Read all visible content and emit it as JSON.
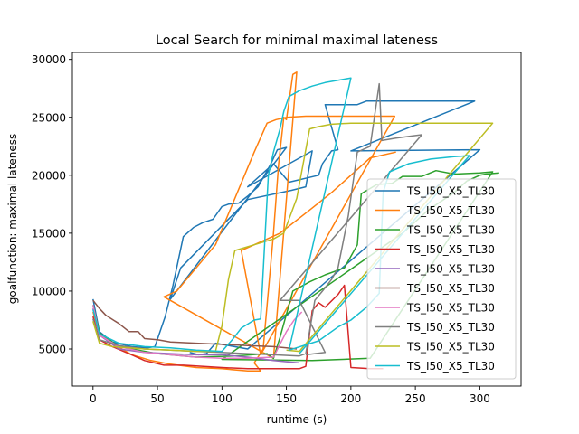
{
  "chart_data": {
    "type": "line",
    "title": "Local Search for minimal maximal lateness",
    "xlabel": "runtime (s)",
    "ylabel": "goalfunction: maximal lateness",
    "xlim": [
      -16,
      332
    ],
    "ylim": [
      1800,
      30600
    ],
    "xticks": [
      0,
      50,
      100,
      150,
      200,
      250,
      300
    ],
    "yticks": [
      5000,
      10000,
      15000,
      20000,
      25000,
      30000
    ],
    "grid": false,
    "legend_position": "center-right",
    "series": [
      {
        "name": "TS_I50_X5_TL30",
        "color": "#1f77b4",
        "points": [
          [
            0,
            9300
          ],
          [
            5,
            6500
          ],
          [
            15,
            5600
          ],
          [
            30,
            5200
          ],
          [
            42,
            5100
          ],
          [
            48,
            5200
          ],
          [
            56,
            7800
          ],
          [
            62,
            10500
          ],
          [
            70,
            14700
          ],
          [
            78,
            15500
          ],
          [
            85,
            15900
          ],
          [
            93,
            16200
          ],
          [
            100,
            17300
          ],
          [
            105,
            17500
          ],
          [
            113,
            17600
          ],
          [
            120,
            18200
          ],
          [
            128,
            19000
          ],
          [
            133,
            20000
          ],
          [
            138,
            21000
          ],
          [
            143,
            22200
          ],
          [
            150,
            22400
          ],
          [
            60,
            9300
          ],
          [
            68,
            12000
          ],
          [
            120,
            17900
          ],
          [
            154,
            18700
          ],
          [
            165,
            19000
          ],
          [
            170,
            22100
          ],
          [
            120,
            19000
          ],
          [
            140,
            21000
          ],
          [
            152,
            19400
          ],
          [
            175,
            20000
          ],
          [
            178,
            21000
          ],
          [
            185,
            22100
          ],
          [
            190,
            22200
          ],
          [
            180,
            26100
          ],
          [
            205,
            26100
          ],
          [
            212,
            26400
          ],
          [
            296,
            26400
          ],
          [
            200,
            22100
          ],
          [
            300,
            22200
          ],
          [
            120,
            5000
          ],
          [
            95,
            5500
          ],
          [
            88,
            4600
          ],
          [
            82,
            4500
          ],
          [
            75,
            4700
          ]
        ]
      },
      {
        "name": "TS_I50_X5_TL30",
        "color": "#ff7f0e",
        "points": [
          [
            0,
            8200
          ],
          [
            5,
            6300
          ],
          [
            15,
            5500
          ],
          [
            30,
            4500
          ],
          [
            45,
            4000
          ],
          [
            60,
            3700
          ],
          [
            80,
            3400
          ],
          [
            100,
            3300
          ],
          [
            120,
            3100
          ],
          [
            130,
            3100
          ],
          [
            125,
            3800
          ],
          [
            132,
            5000
          ],
          [
            136,
            10000
          ],
          [
            140,
            15000
          ],
          [
            144,
            21000
          ],
          [
            148,
            25000
          ],
          [
            150,
            24800
          ],
          [
            155,
            28700
          ],
          [
            158,
            28900
          ],
          [
            140,
            4200
          ],
          [
            55,
            9500
          ],
          [
            65,
            10000
          ],
          [
            95,
            14000
          ],
          [
            110,
            18000
          ],
          [
            125,
            22000
          ],
          [
            135,
            24500
          ],
          [
            142,
            24800
          ],
          [
            150,
            25000
          ],
          [
            165,
            25100
          ],
          [
            234,
            25100
          ],
          [
            130,
            4500
          ],
          [
            115,
            13500
          ],
          [
            145,
            15000
          ],
          [
            168,
            17000
          ],
          [
            185,
            18500
          ],
          [
            200,
            20000
          ],
          [
            215,
            21500
          ],
          [
            235,
            22000
          ]
        ]
      },
      {
        "name": "TS_I50_X5_TL30",
        "color": "#2ca02c",
        "points": [
          [
            0,
            8800
          ],
          [
            5,
            6400
          ],
          [
            20,
            5200
          ],
          [
            50,
            4600
          ],
          [
            80,
            4300
          ],
          [
            110,
            4400
          ],
          [
            135,
            4600
          ],
          [
            140,
            4200
          ],
          [
            145,
            6000
          ],
          [
            150,
            8000
          ],
          [
            155,
            10000
          ],
          [
            168,
            10800
          ],
          [
            180,
            11400
          ],
          [
            195,
            12000
          ],
          [
            205,
            14000
          ],
          [
            208,
            18400
          ],
          [
            220,
            19200
          ],
          [
            232,
            19300
          ],
          [
            240,
            19900
          ],
          [
            255,
            19900
          ],
          [
            266,
            20400
          ],
          [
            280,
            20100
          ],
          [
            300,
            20200
          ],
          [
            310,
            20300
          ],
          [
            215,
            4200
          ],
          [
            170,
            4000
          ],
          [
            100,
            4100
          ],
          [
            240,
            15000
          ],
          [
            260,
            17000
          ],
          [
            280,
            18500
          ],
          [
            290,
            19500
          ],
          [
            300,
            20000
          ],
          [
            305,
            20100
          ],
          [
            315,
            20200
          ]
        ]
      },
      {
        "name": "TS_I50_X5_TL30",
        "color": "#d62728",
        "points": [
          [
            0,
            7800
          ],
          [
            5,
            5800
          ],
          [
            15,
            5200
          ],
          [
            30,
            4500
          ],
          [
            40,
            4000
          ],
          [
            55,
            3600
          ],
          [
            70,
            3600
          ],
          [
            100,
            3400
          ],
          [
            120,
            3300
          ],
          [
            140,
            3300
          ],
          [
            160,
            3300
          ],
          [
            165,
            3500
          ],
          [
            170,
            8300
          ],
          [
            175,
            9000
          ],
          [
            180,
            8600
          ],
          [
            190,
            9700
          ],
          [
            195,
            10500
          ],
          [
            200,
            3400
          ],
          [
            215,
            3300
          ],
          [
            225,
            3300
          ]
        ]
      },
      {
        "name": "TS_I50_X5_TL30",
        "color": "#9467bd",
        "points": [
          [
            0,
            8500
          ],
          [
            5,
            6200
          ],
          [
            20,
            5000
          ],
          [
            40,
            4700
          ],
          [
            60,
            4600
          ],
          [
            80,
            4500
          ],
          [
            100,
            4500
          ],
          [
            120,
            4300
          ],
          [
            140,
            4000
          ],
          [
            150,
            3900
          ],
          [
            160,
            3800
          ]
        ]
      },
      {
        "name": "TS_I50_X5_TL30",
        "color": "#8c564b",
        "points": [
          [
            0,
            9200
          ],
          [
            5,
            8500
          ],
          [
            10,
            7900
          ],
          [
            20,
            7200
          ],
          [
            28,
            6500
          ],
          [
            35,
            6500
          ],
          [
            40,
            5900
          ],
          [
            50,
            5800
          ],
          [
            60,
            5600
          ],
          [
            80,
            5500
          ],
          [
            100,
            5400
          ],
          [
            120,
            5300
          ],
          [
            140,
            5200
          ],
          [
            150,
            5100
          ],
          [
            158,
            5000
          ]
        ]
      },
      {
        "name": "TS_I50_X5_TL30",
        "color": "#e377c2",
        "points": [
          [
            0,
            8800
          ],
          [
            5,
            6200
          ],
          [
            20,
            5200
          ],
          [
            40,
            4700
          ],
          [
            60,
            4500
          ],
          [
            80,
            4300
          ],
          [
            100,
            4200
          ],
          [
            120,
            4200
          ],
          [
            140,
            4300
          ],
          [
            150,
            6500
          ],
          [
            156,
            7500
          ],
          [
            162,
            8200
          ]
        ]
      },
      {
        "name": "TS_I50_X5_TL30",
        "color": "#7f7f7f",
        "points": [
          [
            0,
            7600
          ],
          [
            5,
            5800
          ],
          [
            20,
            5300
          ],
          [
            40,
            5000
          ],
          [
            60,
            4900
          ],
          [
            80,
            4800
          ],
          [
            100,
            4700
          ],
          [
            120,
            4600
          ],
          [
            140,
            4500
          ],
          [
            160,
            4400
          ],
          [
            165,
            4600
          ],
          [
            172,
            9200
          ],
          [
            178,
            10000
          ],
          [
            185,
            11000
          ],
          [
            190,
            12000
          ],
          [
            198,
            16500
          ],
          [
            205,
            22000
          ],
          [
            215,
            22500
          ],
          [
            222,
            27900
          ],
          [
            224,
            23000
          ],
          [
            235,
            23200
          ],
          [
            248,
            23400
          ],
          [
            255,
            23500
          ],
          [
            145,
            9200
          ],
          [
            160,
            9200
          ],
          [
            180,
            4700
          ],
          [
            165,
            4500
          ]
        ]
      },
      {
        "name": "TS_I50_X5_TL30",
        "color": "#bcbd22",
        "points": [
          [
            0,
            7400
          ],
          [
            5,
            5500
          ],
          [
            15,
            5200
          ],
          [
            40,
            5000
          ],
          [
            60,
            4900
          ],
          [
            80,
            4800
          ],
          [
            95,
            4800
          ],
          [
            100,
            7000
          ],
          [
            105,
            11000
          ],
          [
            110,
            13500
          ],
          [
            125,
            14000
          ],
          [
            140,
            14500
          ],
          [
            148,
            15000
          ],
          [
            158,
            18000
          ],
          [
            165,
            22200
          ],
          [
            168,
            24000
          ],
          [
            175,
            24200
          ],
          [
            185,
            24400
          ],
          [
            200,
            24500
          ],
          [
            310,
            24500
          ],
          [
            160,
            4800
          ],
          [
            150,
            4900
          ]
        ]
      },
      {
        "name": "TS_I50_X5_TL30",
        "color": "#17becf",
        "points": [
          [
            0,
            8400
          ],
          [
            5,
            6300
          ],
          [
            20,
            5500
          ],
          [
            40,
            5200
          ],
          [
            60,
            5100
          ],
          [
            80,
            4900
          ],
          [
            100,
            4800
          ],
          [
            108,
            5800
          ],
          [
            115,
            6800
          ],
          [
            125,
            7500
          ],
          [
            130,
            7600
          ],
          [
            136,
            20000
          ],
          [
            140,
            22000
          ],
          [
            145,
            24000
          ],
          [
            148,
            25500
          ],
          [
            152,
            26800
          ],
          [
            160,
            27300
          ],
          [
            170,
            27700
          ],
          [
            180,
            28000
          ],
          [
            195,
            28300
          ],
          [
            200,
            28400
          ],
          [
            152,
            4900
          ],
          [
            175,
            5700
          ],
          [
            190,
            6900
          ],
          [
            200,
            7500
          ],
          [
            212,
            8600
          ],
          [
            222,
            9800
          ],
          [
            225,
            18500
          ],
          [
            230,
            20300
          ],
          [
            245,
            21000
          ],
          [
            262,
            21400
          ],
          [
            280,
            21600
          ],
          [
            292,
            21700
          ],
          [
            160,
            4600
          ]
        ]
      }
    ]
  }
}
